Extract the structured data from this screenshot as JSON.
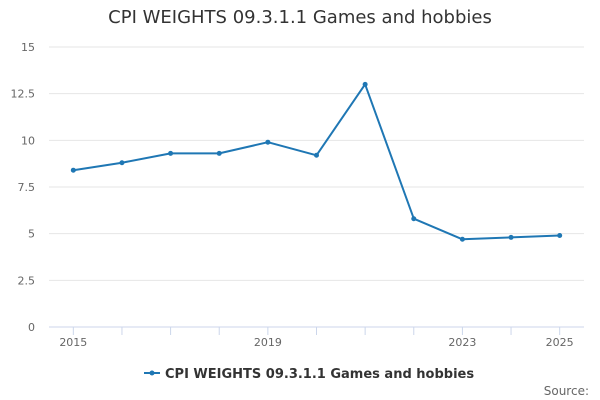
{
  "chart_data": {
    "type": "line",
    "title": "CPI WEIGHTS 09.3.1.1 Games and hobbies",
    "xlabel": "",
    "ylabel": "",
    "x": [
      2015,
      2016,
      2017,
      2018,
      2019,
      2020,
      2021,
      2022,
      2023,
      2024,
      2025
    ],
    "x_tick_labels": [
      "2015",
      "2019",
      "2023",
      "2025"
    ],
    "y_tick_labels": [
      "0",
      "2.5",
      "5",
      "7.5",
      "10",
      "12.5",
      "15"
    ],
    "ylim": [
      0,
      15
    ],
    "xlim": [
      2014.5,
      2025.5
    ],
    "grid": "horizontal",
    "legend_position": "bottom-center",
    "series": [
      {
        "name": "CPI WEIGHTS 09.3.1.1 Games and hobbies",
        "color": "#1f77b4",
        "values": [
          8.4,
          8.8,
          9.3,
          9.3,
          9.9,
          9.2,
          13.0,
          5.8,
          4.7,
          4.8,
          4.9
        ]
      }
    ]
  },
  "credit": "Source:"
}
